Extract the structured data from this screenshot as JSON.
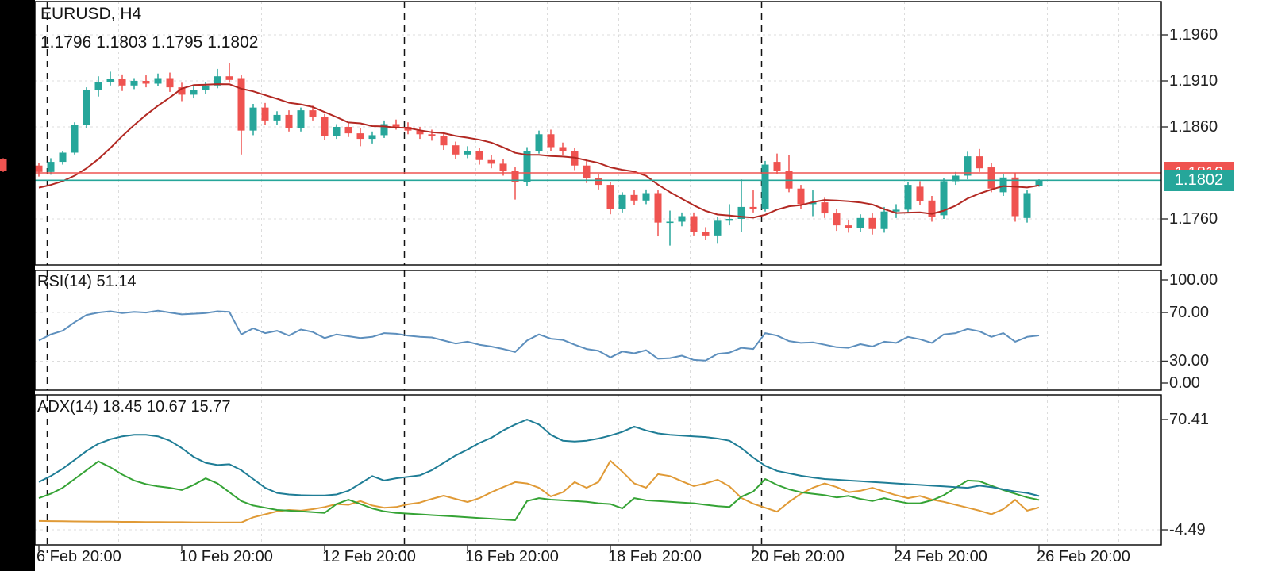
{
  "title": {
    "symbol": "EURUSD, H4",
    "ohlc": "1.1796 1.1803 1.1795 1.1802"
  },
  "colors": {
    "candle_up": "#26a69a",
    "candle_down": "#ef5350",
    "ma_line": "#b22822",
    "bid_line": "#26a69a",
    "ask_line": "#ef5350",
    "rsi_line": "#5d8fbd",
    "adx_line": "#1f7d96",
    "plus_di_line": "#e09a36",
    "minus_di_line": "#35a335",
    "grid_light": "#dcdcdc",
    "separator": "#111111",
    "panel_border": "#000000",
    "badge_bid_bg": "#26a69a",
    "badge_ask_bg": "#ef5350",
    "axis_text": "#222222"
  },
  "price_axis": {
    "labels": [
      {
        "text": "1.1960",
        "value": 1.196
      },
      {
        "text": "1.1910",
        "value": 1.191
      },
      {
        "text": "1.1860",
        "value": 1.186
      },
      {
        "text": "1.1760",
        "value": 1.176
      }
    ],
    "gridline_values": [
      1.196,
      1.191,
      1.186,
      1.181,
      1.176
    ],
    "ask_badge": "1.1810",
    "bid_badge": "1.1802"
  },
  "rsi_panel": {
    "label": "RSI(14) 51.14",
    "axis_labels": [
      {
        "text": "100.00",
        "value": 100
      },
      {
        "text": "70.00",
        "value": 70
      },
      {
        "text": "30.00",
        "value": 30
      },
      {
        "text": "0.00",
        "value": 0
      }
    ],
    "gridline_values": [
      70,
      30
    ]
  },
  "adx_panel": {
    "label": "ADX(14) 18.45 10.67 15.77",
    "axis_labels": [
      {
        "text": "70.41",
        "value": 70.41
      },
      {
        "text": "-4.49",
        "value": -4.49
      }
    ],
    "gridline_values": [
      -4.49
    ]
  },
  "time_axis": {
    "labels": [
      "6 Feb 20:00",
      "10 Feb 20:00",
      "12 Feb 20:00",
      "16 Feb 20:00",
      "18 Feb 20:00",
      "20 Feb 20:00",
      "24 Feb 20:00",
      "26 Feb 20:00"
    ],
    "bar_indices": [
      0,
      12,
      24,
      36,
      48,
      60,
      72,
      84
    ]
  },
  "chart_data": {
    "type": "candlestick",
    "symbol": "EURUSD",
    "timeframe": "H4",
    "ohlc_current": {
      "open": 1.1796,
      "high": 1.1803,
      "low": 1.1795,
      "close": 1.1802
    },
    "bid": 1.1802,
    "ask": 1.181,
    "price_gridlines": [
      1.196,
      1.191,
      1.186,
      1.181,
      1.176
    ],
    "candles": [
      [
        1.1818,
        1.1821,
        1.1806,
        1.1811
      ],
      [
        1.1811,
        1.1826,
        1.1808,
        1.1822
      ],
      [
        1.1822,
        1.1834,
        1.1819,
        1.1832
      ],
      [
        1.1832,
        1.1865,
        1.183,
        1.1862
      ],
      [
        1.1862,
        1.1903,
        1.1859,
        1.19
      ],
      [
        1.19,
        1.1915,
        1.1893,
        1.1909
      ],
      [
        1.1909,
        1.192,
        1.1905,
        1.1912
      ],
      [
        1.1912,
        1.1917,
        1.1899,
        1.1905
      ],
      [
        1.1905,
        1.1913,
        1.1901,
        1.191
      ],
      [
        1.191,
        1.1916,
        1.1903,
        1.1907
      ],
      [
        1.1907,
        1.1918,
        1.1904,
        1.1913
      ],
      [
        1.1913,
        1.1919,
        1.1898,
        1.1903
      ],
      [
        1.1903,
        1.1908,
        1.1888,
        1.1895
      ],
      [
        1.1895,
        1.1904,
        1.1891,
        1.19
      ],
      [
        1.19,
        1.1909,
        1.1896,
        1.1905
      ],
      [
        1.1905,
        1.1923,
        1.1902,
        1.1915
      ],
      [
        1.1915,
        1.1929,
        1.1908,
        1.1911
      ],
      [
        1.1913,
        1.1916,
        1.183,
        1.1856
      ],
      [
        1.1856,
        1.1885,
        1.1851,
        1.1881
      ],
      [
        1.1881,
        1.1886,
        1.1862,
        1.1867
      ],
      [
        1.1867,
        1.1877,
        1.1862,
        1.1873
      ],
      [
        1.1873,
        1.1878,
        1.1855,
        1.1859
      ],
      [
        1.1859,
        1.1881,
        1.1855,
        1.1878
      ],
      [
        1.1878,
        1.1883,
        1.1867,
        1.1871
      ],
      [
        1.1871,
        1.1874,
        1.1846,
        1.185
      ],
      [
        1.185,
        1.1863,
        1.1847,
        1.186
      ],
      [
        1.186,
        1.1864,
        1.1849,
        1.1853
      ],
      [
        1.1853,
        1.1859,
        1.1839,
        1.1847
      ],
      [
        1.1847,
        1.1855,
        1.1842,
        1.1851
      ],
      [
        1.1851,
        1.1867,
        1.1848,
        1.1863
      ],
      [
        1.1863,
        1.1868,
        1.1857,
        1.186
      ],
      [
        1.186,
        1.1865,
        1.1852,
        1.1856
      ],
      [
        1.1856,
        1.186,
        1.1847,
        1.1852
      ],
      [
        1.1852,
        1.1857,
        1.1845,
        1.185
      ],
      [
        1.185,
        1.1853,
        1.1835,
        1.184
      ],
      [
        1.184,
        1.1844,
        1.1825,
        1.183
      ],
      [
        1.183,
        1.1839,
        1.1826,
        1.1834
      ],
      [
        1.1834,
        1.1837,
        1.1819,
        1.1824
      ],
      [
        1.1824,
        1.1829,
        1.1815,
        1.182
      ],
      [
        1.182,
        1.1825,
        1.1807,
        1.1812
      ],
      [
        1.1812,
        1.1816,
        1.1781,
        1.18
      ],
      [
        1.18,
        1.1838,
        1.1796,
        1.1834
      ],
      [
        1.1834,
        1.1856,
        1.1831,
        1.1852
      ],
      [
        1.1852,
        1.1857,
        1.1834,
        1.1838
      ],
      [
        1.1838,
        1.1843,
        1.1829,
        1.1834
      ],
      [
        1.1834,
        1.1837,
        1.1813,
        1.1818
      ],
      [
        1.1818,
        1.1823,
        1.1799,
        1.1804
      ],
      [
        1.1804,
        1.1809,
        1.1792,
        1.1797
      ],
      [
        1.1797,
        1.18,
        1.1765,
        1.1771
      ],
      [
        1.1771,
        1.1789,
        1.1767,
        1.1786
      ],
      [
        1.1786,
        1.1791,
        1.1775,
        1.178
      ],
      [
        1.178,
        1.1792,
        1.1776,
        1.1788
      ],
      [
        1.1788,
        1.1791,
        1.1741,
        1.1756
      ],
      [
        1.1756,
        1.1769,
        1.1731,
        1.1757
      ],
      [
        1.1757,
        1.1767,
        1.1752,
        1.1763
      ],
      [
        1.1763,
        1.1767,
        1.1742,
        1.1746
      ],
      [
        1.1746,
        1.1751,
        1.1737,
        1.1742
      ],
      [
        1.1742,
        1.1762,
        1.1733,
        1.1758
      ],
      [
        1.1758,
        1.1776,
        1.1753,
        1.176
      ],
      [
        1.176,
        1.1803,
        1.1746,
        1.1773
      ],
      [
        1.1773,
        1.1791,
        1.1767,
        1.1771
      ],
      [
        1.1771,
        1.1823,
        1.1768,
        1.1819
      ],
      [
        1.1822,
        1.1831,
        1.1809,
        1.1812
      ],
      [
        1.1812,
        1.1829,
        1.1789,
        1.1793
      ],
      [
        1.1793,
        1.1797,
        1.1771,
        1.1776
      ],
      [
        1.1776,
        1.1791,
        1.1763,
        1.1778
      ],
      [
        1.1778,
        1.1783,
        1.1761,
        1.1766
      ],
      [
        1.1766,
        1.1771,
        1.1747,
        1.1753
      ],
      [
        1.1753,
        1.1759,
        1.1745,
        1.175
      ],
      [
        1.175,
        1.1765,
        1.1746,
        1.1761
      ],
      [
        1.1761,
        1.1766,
        1.1743,
        1.1749
      ],
      [
        1.1749,
        1.1773,
        1.1745,
        1.1768
      ],
      [
        1.1768,
        1.1776,
        1.1761,
        1.177
      ],
      [
        1.177,
        1.18,
        1.1767,
        1.1797
      ],
      [
        1.1795,
        1.1801,
        1.1775,
        1.1779
      ],
      [
        1.178,
        1.1785,
        1.1757,
        1.1762
      ],
      [
        1.1764,
        1.1804,
        1.176,
        1.1801
      ],
      [
        1.1801,
        1.1811,
        1.1797,
        1.1807
      ],
      [
        1.1807,
        1.1833,
        1.1803,
        1.1828
      ],
      [
        1.1828,
        1.1836,
        1.1811,
        1.1815
      ],
      [
        1.1816,
        1.1821,
        1.1789,
        1.1793
      ],
      [
        1.1789,
        1.1809,
        1.1785,
        1.1805
      ],
      [
        1.1805,
        1.181,
        1.1757,
        1.1763
      ],
      [
        1.1761,
        1.1791,
        1.1756,
        1.1788
      ],
      [
        1.1796,
        1.1803,
        1.1795,
        1.1802
      ]
    ],
    "edge_candle": [
      1.1825,
      1.1826,
      1.1811,
      1.1812
    ],
    "edge_candle_bar": -3,
    "ma_period": 10,
    "rsi_period": 14,
    "rsi_current": 51.14,
    "rsi_range": [
      0,
      100
    ],
    "rsi_values": [
      47,
      52,
      55,
      62,
      68,
      70,
      71,
      69.5,
      70.5,
      70,
      71.5,
      70,
      68.5,
      69,
      69.5,
      71,
      70.5,
      52,
      57,
      53,
      55,
      51,
      56,
      54,
      49,
      52,
      50.5,
      49,
      50,
      53,
      52.5,
      51,
      50,
      49.5,
      47,
      44.5,
      46,
      43.5,
      42,
      40,
      37.5,
      47,
      52,
      48.5,
      47.5,
      43.5,
      40,
      38.5,
      33,
      38,
      36.5,
      39,
      32,
      32.5,
      34.5,
      31,
      30.5,
      36,
      37,
      41,
      40,
      53,
      51,
      46.5,
      45,
      45.5,
      43.5,
      41.5,
      41,
      44,
      42,
      46,
      45,
      50,
      48,
      45,
      52,
      53,
      56.5,
      54.5,
      50,
      53,
      46,
      50,
      51.14
    ],
    "adx": {
      "current": [
        18.45,
        10.67,
        15.77
      ],
      "range": [
        -4.49,
        70.41
      ],
      "adx_values": [
        28,
        32,
        37,
        43,
        49,
        54,
        57,
        59,
        60,
        60,
        59,
        56,
        51,
        45,
        41,
        39.5,
        40,
        36,
        30,
        24,
        20.5,
        19.5,
        19,
        18.8,
        18.8,
        19.5,
        22,
        27,
        32,
        29,
        30.5,
        31.5,
        32.5,
        36,
        41,
        46,
        50,
        54.5,
        58,
        63,
        67,
        70.41,
        67,
        60,
        56,
        55.5,
        56,
        57.5,
        59.5,
        62,
        65.6,
        63,
        61,
        60,
        59.5,
        59,
        58.5,
        57.5,
        56,
        51,
        44.5,
        39,
        35.5,
        33.8,
        32.2,
        31,
        30,
        29.5,
        29,
        28.5,
        28,
        27.5,
        27,
        26.5,
        26,
        25.5,
        25,
        24.5,
        24,
        25.5,
        24.5,
        23,
        21.5,
        20.5,
        18.45
      ],
      "plus_di_values": [
        1.5,
        1.4,
        1.3,
        1.2,
        1.1,
        1,
        1,
        0.9,
        0.9,
        0.8,
        0.8,
        0.7,
        0.7,
        0.6,
        0.6,
        0.5,
        0.5,
        0.5,
        4,
        6,
        8,
        9,
        8.5,
        9.5,
        11,
        13,
        12.5,
        15,
        12,
        10.5,
        11,
        12.8,
        14,
        16.5,
        18.7,
        16.5,
        14.4,
        17,
        21,
        24.5,
        27.9,
        27,
        24,
        18.2,
        21,
        27.9,
        24,
        28,
        42.4,
        35,
        27,
        24.1,
        33.3,
        32,
        28.5,
        25.2,
        27,
        29.5,
        25,
        17.1,
        13.2,
        10.5,
        7.8,
        14.4,
        20,
        24,
        27,
        24.5,
        21,
        22,
        24,
        21.5,
        19,
        17,
        18.5,
        16,
        14.5,
        12.5,
        10.5,
        8.5,
        6.1,
        9.5,
        15.9,
        8.5,
        10.67
      ],
      "minus_di_values": [
        17,
        20,
        24,
        30,
        36,
        42,
        38,
        33,
        29,
        26.5,
        25,
        24,
        22.5,
        26,
        30.5,
        27,
        21,
        15,
        12,
        10.5,
        9,
        8.5,
        8,
        7.5,
        7,
        13,
        16,
        13,
        10,
        8,
        7,
        6.5,
        6,
        5.5,
        5,
        4.5,
        4,
        3.5,
        3,
        2.5,
        2,
        15,
        17,
        16,
        15.5,
        15,
        14.5,
        13.5,
        13,
        10,
        17,
        15.5,
        15,
        14.5,
        14,
        13.5,
        12.5,
        11.5,
        11,
        18,
        21.5,
        30,
        26,
        23,
        21,
        20,
        19,
        17.5,
        18.5,
        16.5,
        15,
        17,
        15,
        13.5,
        13.5,
        15.5,
        19,
        24,
        29,
        28.5,
        25.5,
        22.5,
        20,
        17.5,
        15.77
      ]
    },
    "week_separator_bars": [
      1,
      31,
      61
    ],
    "day_gridline_bars": [
      7,
      13,
      19,
      25,
      37,
      43,
      49,
      55,
      67,
      73,
      79,
      85,
      91
    ]
  }
}
